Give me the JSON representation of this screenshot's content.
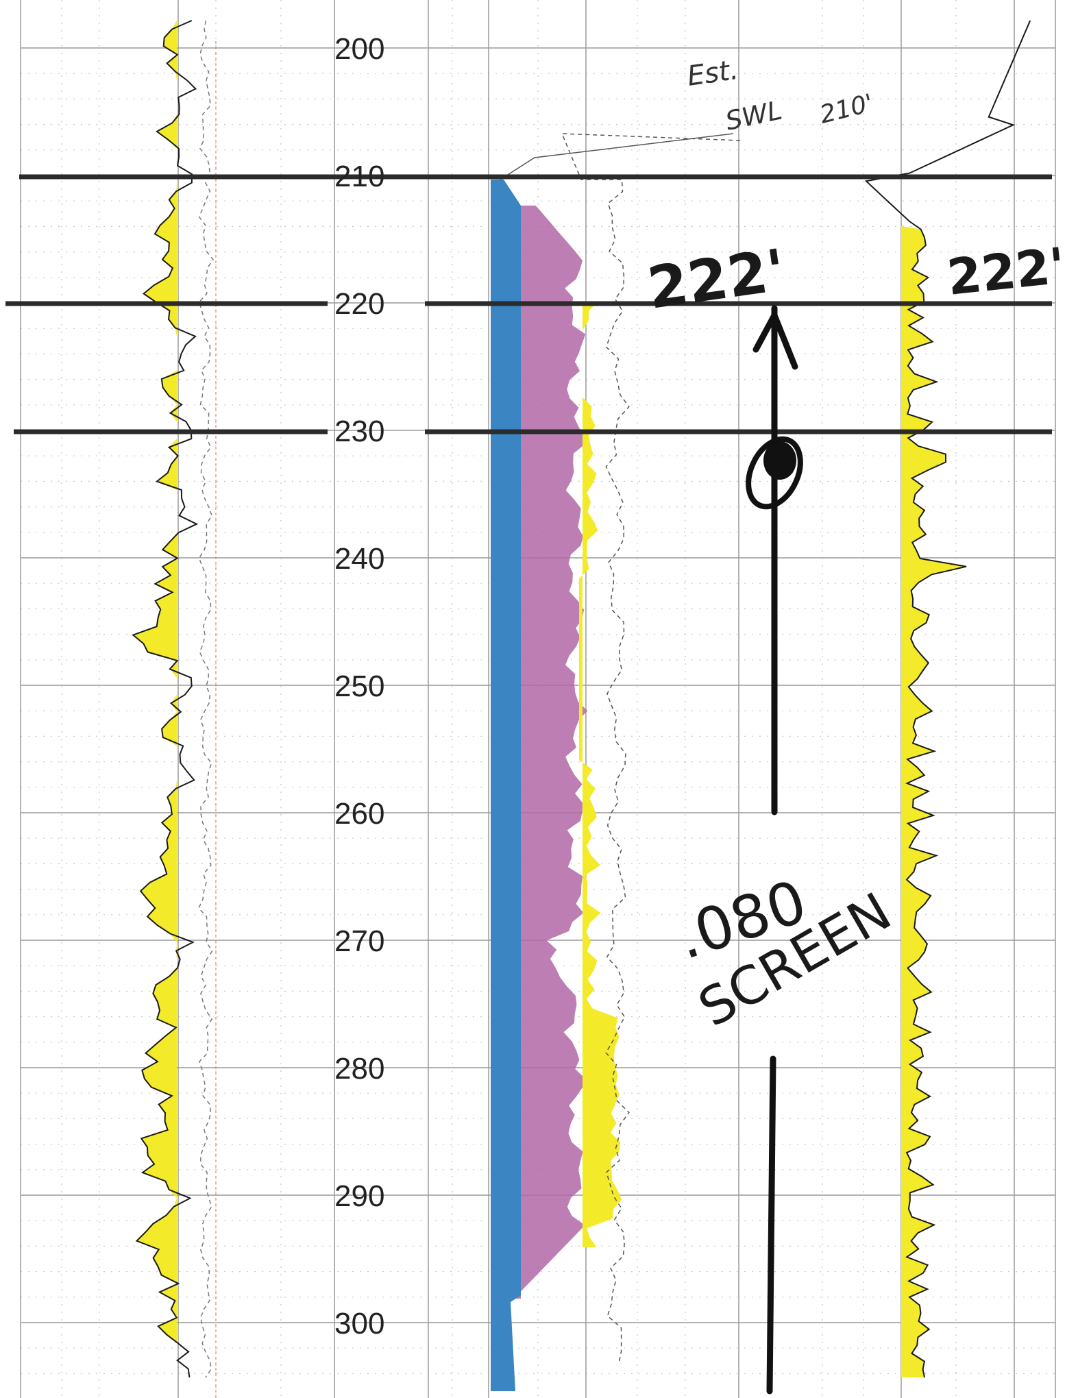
{
  "log": {
    "depth_labels": [
      "200",
      "210",
      "220",
      "230",
      "240",
      "250",
      "260",
      "270",
      "280",
      "290",
      "300"
    ],
    "depth_range": [
      200,
      303
    ],
    "colors": {
      "grid": "#9a9a9a",
      "dotted_grid": "#c4c4c4",
      "casing": "#3a85c2",
      "formation": "#b067a6",
      "sand_fill": "#f3ea2a",
      "curve": "#1a1a1a",
      "marker_line": "#2b2b2b",
      "ink": "#111111"
    }
  },
  "annotations": {
    "swl_line1": "Est.",
    "swl_line2": "SWL",
    "swl_depth": "210'",
    "top_screen_center": "222'",
    "top_screen_right": "222'",
    "screen_slot": ".080",
    "screen_word": "SCREEN"
  },
  "chart_data": {
    "type": "line",
    "title": "",
    "xlabel": "",
    "ylabel": "",
    "ylim": [
      303,
      200
    ],
    "depth_ticks": [
      200,
      210,
      220,
      230,
      240,
      250,
      260,
      270,
      280,
      290,
      300
    ],
    "horizontal_markers": [
      210,
      220,
      230
    ],
    "screen_interval": [
      222,
      260
    ],
    "screen_marker_depth": 231
  }
}
